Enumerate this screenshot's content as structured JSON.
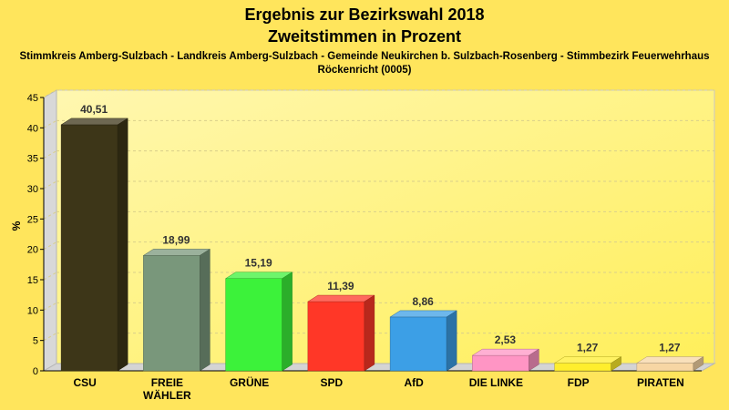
{
  "chart_data": {
    "type": "bar",
    "title": "Ergebnis zur Bezirkswahl 2018",
    "title_line2": "Zweitstimmen in Prozent",
    "subtitle_line1": "Stimmkreis Amberg-Sulzbach - Landkreis Amberg-Sulzbach - Gemeinde Neukirchen b. Sulzbach-Rosenberg - Stimmbezirk Feuerwehrhaus",
    "subtitle_line2": "Röckenricht (0005)",
    "ylabel": "%",
    "ylim": [
      0,
      45
    ],
    "yticks": [
      0,
      5,
      10,
      15,
      20,
      25,
      30,
      35,
      40,
      45
    ],
    "grid": true,
    "categories": [
      "CSU",
      "FREIE WÄHLER",
      "GRÜNE",
      "SPD",
      "AfD",
      "DIE LINKE",
      "FDP",
      "PIRATEN"
    ],
    "category_lines": [
      [
        "CSU"
      ],
      [
        "FREIE",
        "WÄHLER"
      ],
      [
        "GRÜNE"
      ],
      [
        "SPD"
      ],
      [
        "AfD"
      ],
      [
        "DIE LINKE"
      ],
      [
        "FDP"
      ],
      [
        "PIRATEN"
      ]
    ],
    "values": [
      40.51,
      18.99,
      15.19,
      11.39,
      8.86,
      2.53,
      1.27,
      1.27
    ],
    "value_labels": [
      "40,51",
      "18,99",
      "15,19",
      "11,39",
      "8,86",
      "2,53",
      "1,27",
      "1,27"
    ],
    "colors": [
      "#3d3618",
      "#79977b",
      "#3cf23a",
      "#ff3727",
      "#3c9fe6",
      "#ff95c4",
      "#ffee2d",
      "#f7d6a4"
    ]
  }
}
